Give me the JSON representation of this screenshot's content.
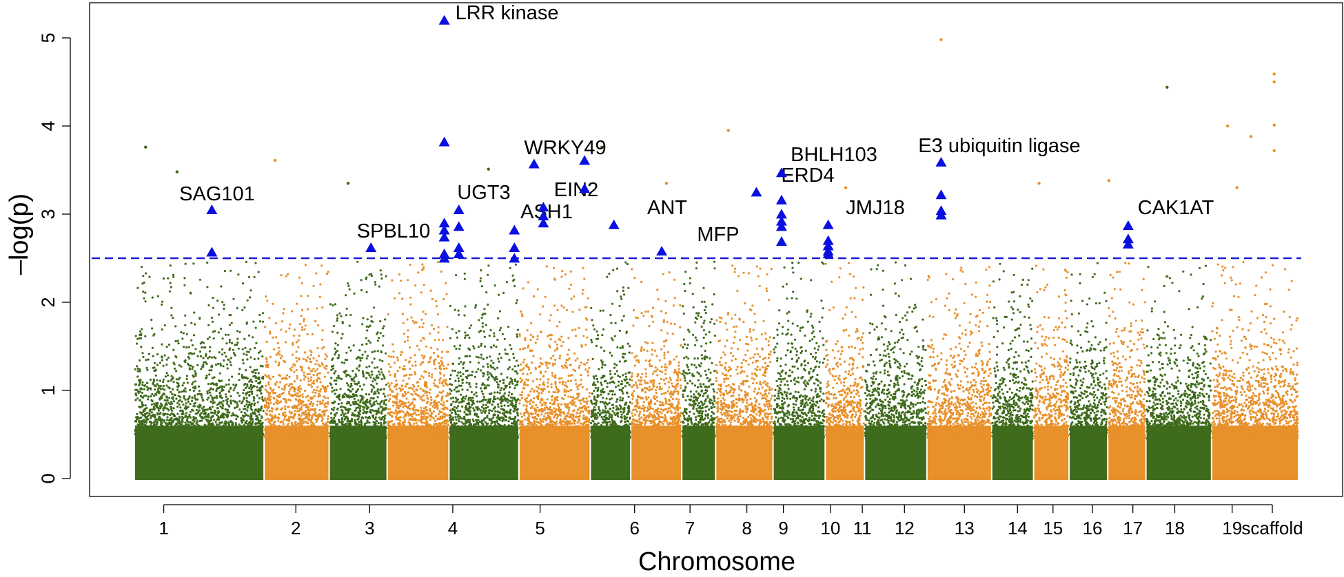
{
  "chart_data": {
    "type": "scatter",
    "title": "",
    "xlabel": "Chromosome",
    "ylabel": "–log(p)",
    "ylim": [
      0,
      5.3
    ],
    "yticks": [
      0,
      1,
      2,
      3,
      4,
      5
    ],
    "threshold": 2.5,
    "colors": {
      "odd": "#3f6b1c",
      "even": "#e8902a",
      "highlight": "#0a10e0",
      "threshold": "#1a1ad8"
    },
    "chromosomes": [
      {
        "label": "1",
        "start": 0.0,
        "end": 0.1114
      },
      {
        "label": "2",
        "start": 0.1114,
        "end": 0.1673
      },
      {
        "label": "3",
        "start": 0.1673,
        "end": 0.2171
      },
      {
        "label": "4",
        "start": 0.2171,
        "end": 0.2702
      },
      {
        "label": "5",
        "start": 0.2702,
        "end": 0.3303
      },
      {
        "label": "6",
        "start": 0.3303,
        "end": 0.3916
      },
      {
        "label": "7",
        "start": 0.3916,
        "end": 0.4264
      },
      {
        "label": "8",
        "start": 0.4264,
        "end": 0.4702
      },
      {
        "label": "9",
        "start": 0.4702,
        "end": 0.4993
      },
      {
        "label": "10",
        "start": 0.4993,
        "end": 0.5486
      },
      {
        "label": "11",
        "start": 0.5486,
        "end": 0.5934
      },
      {
        "label": "12",
        "start": 0.5934,
        "end": 0.6272
      },
      {
        "label": "13",
        "start": 0.6272,
        "end": 0.6808
      },
      {
        "label": "14",
        "start": 0.6808,
        "end": 0.7364
      },
      {
        "label": "15",
        "start": 0.7364,
        "end": 0.7724
      },
      {
        "label": "16",
        "start": 0.7724,
        "end": 0.8029
      },
      {
        "label": "17",
        "start": 0.8029,
        "end": 0.8361
      },
      {
        "label": "18",
        "start": 0.8361,
        "end": 0.8689
      },
      {
        "label": "19",
        "start": 0.8689,
        "end": 0.9253
      },
      {
        "label": "scaffold",
        "start": 0.9253,
        "end": 1.0
      }
    ],
    "genes": [
      {
        "name": "LRR kinase",
        "pos": 0.2662,
        "p": 5.2,
        "extra": [
          3.82,
          2.9,
          2.82,
          2.74,
          2.55,
          2.5
        ]
      },
      {
        "name": "SAG101",
        "pos": 0.0665,
        "p": 3.05,
        "extra": [
          2.57
        ]
      },
      {
        "name": "SPBL10",
        "pos": 0.2032,
        "p": 2.62,
        "extra": []
      },
      {
        "name": "UGT3",
        "pos": 0.2787,
        "p": 3.05,
        "extra": [
          2.86,
          2.62,
          2.55
        ]
      },
      {
        "name": "ASH1",
        "pos": 0.3264,
        "p": 2.82,
        "extra": [
          2.62,
          2.5
        ]
      },
      {
        "name": "EIN2",
        "pos": 0.3513,
        "p": 3.08,
        "extra": [
          2.98,
          2.9
        ]
      },
      {
        "name": "WRKY49",
        "pos": 0.3433,
        "p": 3.57,
        "extra": []
      },
      {
        "name": "",
        "pos": 0.3867,
        "p": 3.61,
        "extra": [
          3.29
        ]
      },
      {
        "name": "ANT",
        "pos": 0.4119,
        "p": 2.88,
        "extra": []
      },
      {
        "name": "MFP",
        "pos": 0.453,
        "p": 2.58,
        "extra": []
      },
      {
        "name": "ERD4",
        "pos": 0.5343,
        "p": 3.25,
        "extra": []
      },
      {
        "name": "BHLH103",
        "pos": 0.5559,
        "p": 3.47,
        "extra": [
          3.16,
          3.0,
          2.92,
          2.86,
          2.69
        ]
      },
      {
        "name": "JMJ18",
        "pos": 0.596,
        "p": 2.88,
        "extra": [
          2.7,
          2.64,
          2.58,
          2.55
        ]
      },
      {
        "name": "E3 ubiquitin ligase",
        "pos": 0.693,
        "p": 3.59,
        "extra": [
          3.22,
          3.04,
          2.99
        ]
      },
      {
        "name": "CAK1AT",
        "pos": 0.8537,
        "p": 2.87,
        "extra": [
          2.72,
          2.66
        ]
      }
    ],
    "notable_points": [
      {
        "pos": 0.693,
        "p": 4.98
      },
      {
        "pos": 0.9791,
        "p": 4.59
      },
      {
        "pos": 0.9791,
        "p": 4.5
      },
      {
        "pos": 0.8871,
        "p": 4.44
      },
      {
        "pos": 0.9791,
        "p": 4.01
      },
      {
        "pos": 0.9391,
        "p": 4.0
      },
      {
        "pos": 0.9591,
        "p": 3.88
      },
      {
        "pos": 0.5102,
        "p": 3.95
      },
      {
        "pos": 0.0096,
        "p": 3.76
      },
      {
        "pos": 0.2661,
        "p": 3.82
      },
      {
        "pos": 0.4015,
        "p": 3.76
      },
      {
        "pos": 0.9791,
        "p": 3.72
      },
      {
        "pos": 0.1209,
        "p": 3.61
      },
      {
        "pos": 0.0366,
        "p": 3.48
      },
      {
        "pos": 0.3042,
        "p": 3.51
      },
      {
        "pos": 0.1836,
        "p": 3.35
      },
      {
        "pos": 0.9471,
        "p": 3.3
      },
      {
        "pos": 0.8371,
        "p": 3.38
      },
      {
        "pos": 0.7771,
        "p": 3.35
      },
      {
        "pos": 0.457,
        "p": 3.35
      },
      {
        "pos": 0.6111,
        "p": 3.3
      }
    ]
  }
}
